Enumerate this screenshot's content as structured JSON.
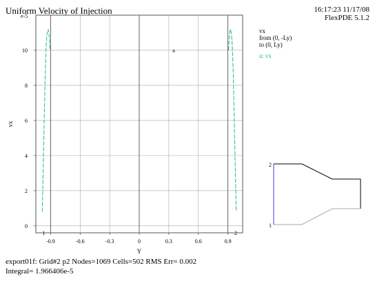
{
  "header": {
    "title": "Uniform Velocity of Injection",
    "timestamp": "16:17:23 11/17/08",
    "version": "FlexPDE 5.1.2"
  },
  "legend": {
    "variable": "vx",
    "from": "from (0, -Ly)",
    "to": "to (0, Ly)",
    "series_label": "a: vx"
  },
  "footer": {
    "line1": "export01f:  Grid#2  p2  Nodes=1069 Cells=502 RMS Err= 0.002",
    "line2": "Integral=  1.966406e-5"
  },
  "colors": {
    "series": "#1fb89a",
    "grid": "#a8a8a8",
    "axis": "#555555",
    "marker": "#d02020",
    "inset_side": "#4040d0"
  },
  "chart_data": {
    "type": "line",
    "xlabel": "Y",
    "ylabel": "vx",
    "exponent_label": "e-5",
    "xlim": [
      -1.05,
      1.05
    ],
    "ylim": [
      -0.4,
      12.0
    ],
    "x_ticks": [
      -0.9,
      -0.6,
      -0.3,
      0,
      0.3,
      0.6,
      0.9
    ],
    "x_tick_labels": [
      "-0.9",
      "-0.6",
      "-0.3",
      "0",
      "0.3",
      "0.6",
      "0.9"
    ],
    "y_ticks": [
      0,
      2,
      4,
      6,
      8,
      10
    ],
    "y_tick_labels": [
      "0",
      "2",
      "4",
      "6",
      "8",
      "10"
    ],
    "grid": true,
    "series_marker": "a",
    "series_marker_x": 0.35,
    "series_marker_y": 10.0,
    "end_markers": [
      {
        "label": "1",
        "x": -0.97,
        "y": -0.4
      },
      {
        "label": "2",
        "x": 0.98,
        "y": -0.4
      }
    ],
    "series": [
      {
        "name": "a: vx",
        "x": [
          -0.985,
          -0.975,
          -0.965,
          -0.955,
          -0.945,
          -0.935,
          -0.925,
          -0.918,
          -0.912,
          -0.906
        ],
        "y": [
          0.8,
          3.2,
          6.0,
          8.6,
          10.3,
          11.0,
          11.2,
          11.0,
          10.6,
          10.0
        ],
        "mirror_x": [
          0.906,
          0.912,
          0.918,
          0.925,
          0.935,
          0.945,
          0.955,
          0.965,
          0.975,
          0.985
        ],
        "mirror_y": [
          10.0,
          10.6,
          11.0,
          11.2,
          11.0,
          10.3,
          8.6,
          6.0,
          3.2,
          0.8
        ]
      }
    ]
  },
  "inset": {
    "marker_top": "2",
    "marker_bottom": "1"
  }
}
